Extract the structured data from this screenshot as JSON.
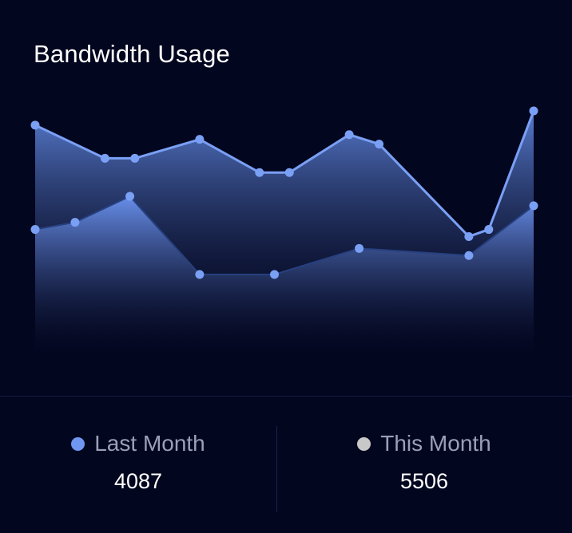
{
  "title": "Bandwidth Usage",
  "colors": {
    "background": "#03061f",
    "last_month": "#6f97f2",
    "this_month": "#c8c8c8"
  },
  "legend": [
    {
      "label": "Last Month",
      "value": "4087",
      "color": "#6f97f2"
    },
    {
      "label": "This Month",
      "value": "5506",
      "color": "#c8c8c8"
    }
  ],
  "chart_data": {
    "type": "area",
    "title": "Bandwidth Usage",
    "grid": false,
    "ylim": [
      0,
      100
    ],
    "series": [
      {
        "name": "Last Month",
        "points": [
          [
            0,
            94
          ],
          [
            14,
            80
          ],
          [
            20,
            80
          ],
          [
            33,
            88
          ],
          [
            45,
            74
          ],
          [
            51,
            74
          ],
          [
            63,
            90
          ],
          [
            69,
            86
          ],
          [
            87,
            47
          ],
          [
            91,
            50
          ],
          [
            100,
            100
          ]
        ]
      },
      {
        "name": "This Month",
        "points": [
          [
            0,
            50
          ],
          [
            8,
            53
          ],
          [
            19,
            64
          ],
          [
            33,
            31
          ],
          [
            48,
            31
          ],
          [
            65,
            42
          ],
          [
            87,
            39
          ],
          [
            100,
            60
          ]
        ]
      }
    ]
  }
}
